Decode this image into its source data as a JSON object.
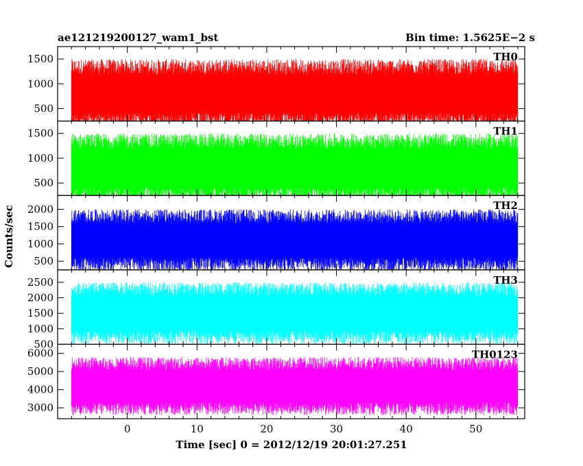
{
  "header": {
    "left_title": "ae121219200127_wam1_bst",
    "right_title": "Bin time: 1.5625E−2 s"
  },
  "axes": {
    "ylabel": "Counts/sec",
    "xlabel": "Time [sec] 0 = 2012/12/19 20:01:27.251"
  },
  "chart_data": {
    "type": "line",
    "x_range": [
      -8,
      56
    ],
    "xlim": [
      -10,
      57
    ],
    "x_ticks": [
      0,
      10,
      20,
      30,
      40,
      50
    ],
    "bin_time_s": 0.015625,
    "panels": [
      {
        "name": "TH0",
        "color": "#ff0000",
        "ylim": [
          250,
          1750
        ],
        "y_ticks": [
          500,
          1000,
          1500
        ],
        "baseline": 800,
        "spread": 700,
        "min": 150,
        "max": 1750
      },
      {
        "name": "TH1",
        "color": "#00ff00",
        "ylim": [
          250,
          1750
        ],
        "y_ticks": [
          500,
          1000,
          1500
        ],
        "baseline": 800,
        "spread": 700,
        "min": 150,
        "max": 1750
      },
      {
        "name": "TH2",
        "color": "#0000ff",
        "ylim": [
          250,
          2400
        ],
        "y_ticks": [
          500,
          1000,
          1500,
          2000
        ],
        "baseline": 1100,
        "spread": 900,
        "min": 250,
        "max": 2400
      },
      {
        "name": "TH3",
        "color": "#00ffff",
        "ylim": [
          500,
          2900
        ],
        "y_ticks": [
          500,
          1000,
          1500,
          2000,
          2500
        ],
        "baseline": 1500,
        "spread": 1000,
        "min": 500,
        "max": 2900
      },
      {
        "name": "TH0123",
        "color": "#ff00ff",
        "ylim": [
          2400,
          6500
        ],
        "y_ticks": [
          3000,
          4000,
          5000,
          6000
        ],
        "baseline": 4200,
        "spread": 1600,
        "min": 2400,
        "max": 6500
      }
    ]
  }
}
